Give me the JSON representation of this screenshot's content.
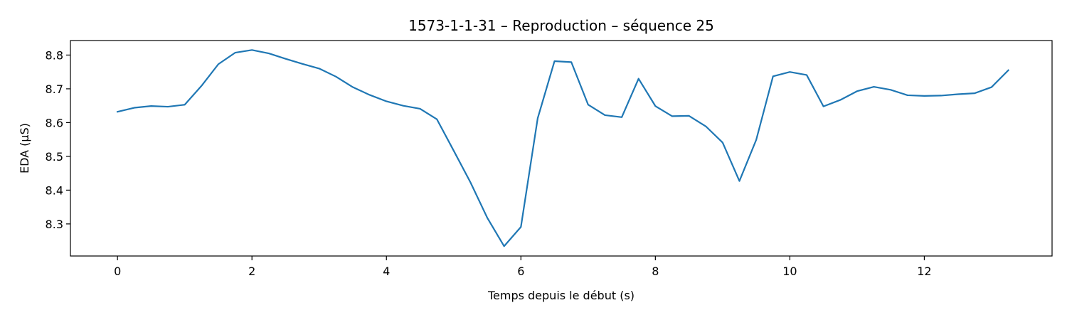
{
  "chart_data": {
    "type": "line",
    "title": "1573-1-1-31 – Reproduction – séquence 25",
    "xlabel": "Temps depuis le début (s)",
    "ylabel": "EDA (µS)",
    "xlim": [
      -0.7,
      13.9
    ],
    "ylim": [
      8.205,
      8.843
    ],
    "xticks": [
      0,
      2,
      4,
      6,
      8,
      10,
      12
    ],
    "xtick_labels": [
      "0",
      "2",
      "4",
      "6",
      "8",
      "10",
      "12"
    ],
    "yticks": [
      8.3,
      8.4,
      8.5,
      8.6,
      8.7,
      8.8
    ],
    "ytick_labels": [
      "8.3",
      "8.4",
      "8.5",
      "8.6",
      "8.7",
      "8.8"
    ],
    "grid": false,
    "line_color": "#1f77b4",
    "series": [
      {
        "x": [
          0,
          0.25,
          0.5,
          0.75,
          1.0,
          1.25,
          1.5,
          1.75,
          2.0,
          2.25,
          2.5,
          2.75,
          3.0,
          3.25,
          3.5,
          3.75,
          4.0,
          4.25,
          4.5,
          4.75,
          5.0,
          5.25,
          5.5,
          5.75,
          6.0,
          6.25,
          6.5,
          6.75,
          7.0,
          7.25,
          7.5,
          7.75,
          8.0,
          8.25,
          8.5,
          8.75,
          9.0,
          9.25,
          9.5,
          9.75,
          10.0,
          10.25,
          10.5,
          10.75,
          11.0,
          11.25,
          11.5,
          11.75,
          12.0,
          12.25,
          12.5,
          12.75,
          13.0,
          13.25
        ],
        "values": [
          8.632,
          8.644,
          8.649,
          8.647,
          8.653,
          8.709,
          8.773,
          8.807,
          8.815,
          8.805,
          8.789,
          8.774,
          8.76,
          8.736,
          8.705,
          8.682,
          8.663,
          8.65,
          8.641,
          8.61,
          8.517,
          8.423,
          8.318,
          8.234,
          8.291,
          8.613,
          8.782,
          8.779,
          8.653,
          8.622,
          8.616,
          8.73,
          8.649,
          8.619,
          8.62,
          8.589,
          8.541,
          8.427,
          8.549,
          8.737,
          8.75,
          8.741,
          8.648,
          8.667,
          8.693,
          8.706,
          8.697,
          8.681,
          8.679,
          8.68,
          8.684,
          8.687,
          8.705,
          8.755
        ]
      }
    ]
  }
}
